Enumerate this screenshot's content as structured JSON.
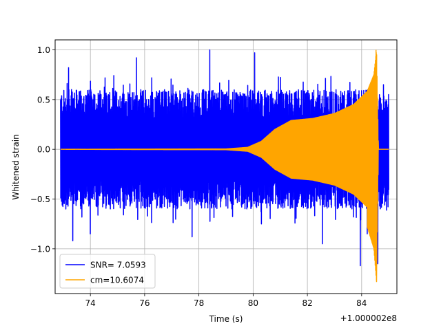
{
  "chart_data": {
    "type": "line",
    "title": "",
    "xlabel": "Time (s)",
    "ylabel": "Whitened strain",
    "x_offset_label": "+1.000002e8",
    "xlim": [
      72.7,
      85.3
    ],
    "ylim": [
      -1.45,
      1.1
    ],
    "x_ticks": [
      74,
      76,
      78,
      80,
      82,
      84
    ],
    "x_tick_labels": [
      "74",
      "76",
      "78",
      "80",
      "82",
      "84"
    ],
    "y_ticks": [
      -1.0,
      -0.5,
      0.0,
      0.5,
      1.0
    ],
    "y_tick_labels": [
      "−1.0",
      "−0.5",
      "0.0",
      "0.5",
      "1.0"
    ],
    "grid": true,
    "legend_position": "lower-left",
    "series": [
      {
        "name": "SNR= 7.0593",
        "color": "#0000ff",
        "description": "whitened detector data",
        "x_range": [
          72.9,
          85.0
        ],
        "envelope_typical": [
          -0.55,
          0.6
        ],
        "spikes": [
          {
            "x": 73.35,
            "y": -0.92
          },
          {
            "x": 73.2,
            "y": 0.82
          },
          {
            "x": 74.0,
            "y": -0.85
          },
          {
            "x": 75.7,
            "y": 0.92
          },
          {
            "x": 77.75,
            "y": -0.88
          },
          {
            "x": 78.4,
            "y": 1.0
          },
          {
            "x": 80.05,
            "y": 0.97
          },
          {
            "x": 80.3,
            "y": -0.75
          },
          {
            "x": 82.55,
            "y": -0.95
          },
          {
            "x": 83.95,
            "y": -1.17
          },
          {
            "x": 84.2,
            "y": -0.85
          },
          {
            "x": 84.6,
            "y": -1.15
          },
          {
            "x": 84.8,
            "y": 0.65
          }
        ]
      },
      {
        "name": "cm=10.6074",
        "color": "#ffa500",
        "description": "best-match chirp template",
        "x_range": [
          72.9,
          85.0
        ],
        "envelope": [
          {
            "x": 72.9,
            "amp": 0.0
          },
          {
            "x": 79.0,
            "amp": 0.004
          },
          {
            "x": 79.8,
            "amp": 0.02
          },
          {
            "x": 80.3,
            "amp": 0.08
          },
          {
            "x": 80.8,
            "amp": 0.2
          },
          {
            "x": 81.4,
            "amp": 0.29
          },
          {
            "x": 82.2,
            "amp": 0.31
          },
          {
            "x": 83.0,
            "amp": 0.36
          },
          {
            "x": 83.7,
            "amp": 0.45
          },
          {
            "x": 84.2,
            "amp": 0.58
          },
          {
            "x": 84.45,
            "amp": 0.75
          },
          {
            "x": 84.55,
            "amp": 1.0
          },
          {
            "x": 84.62,
            "amp": 0.0
          },
          {
            "x": 85.0,
            "amp": 0.0
          }
        ],
        "peak_max": 1.0,
        "peak_min": -1.33
      }
    ]
  }
}
